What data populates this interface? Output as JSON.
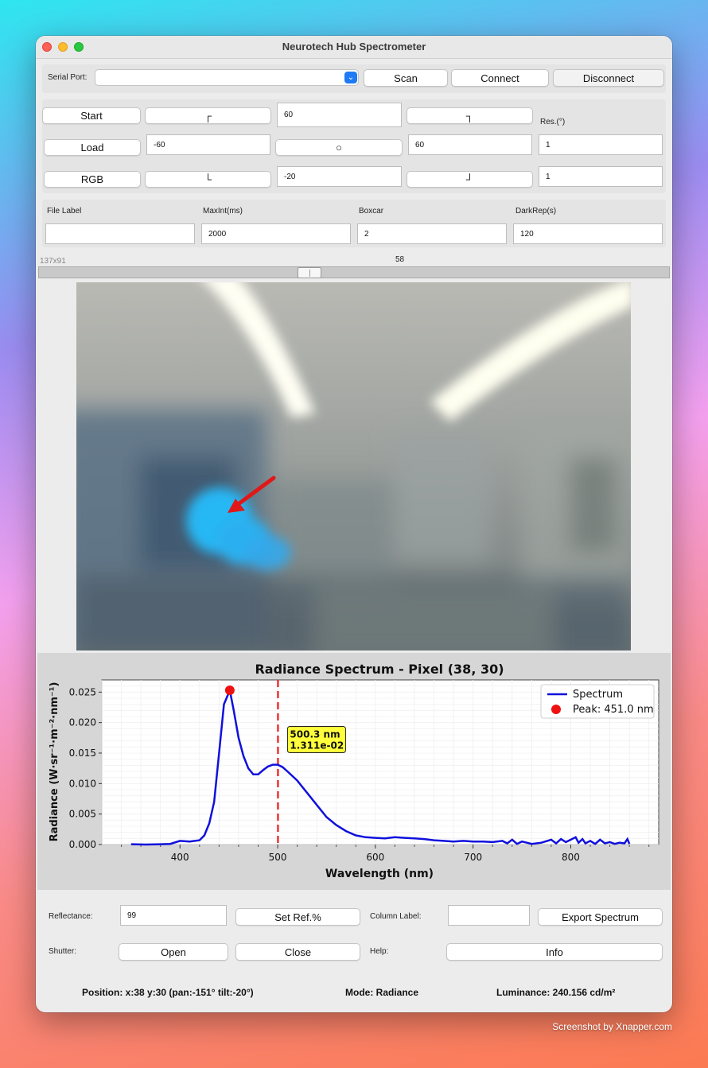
{
  "window": {
    "title": "Neurotech Hub Spectrometer"
  },
  "serial": {
    "label": "Serial Port:",
    "selected": "",
    "scan": "Scan",
    "connect": "Connect",
    "disconnect": "Disconnect"
  },
  "grid": {
    "start": "Start",
    "load": "Load",
    "rgb": "RGB",
    "tl_glyph": "┌",
    "tr_glyph": "┐",
    "bl_glyph": "└",
    "br_glyph": "┘",
    "center_glyph": "○",
    "top_value": "60",
    "left_value": "-60",
    "right_value": "60",
    "bottom_value": "-20",
    "res_label": "Res.(°)",
    "res_value_1": "1",
    "res_value_2": "1"
  },
  "params": {
    "file_label": "File Label",
    "file_value": "",
    "maxint_label": "MaxInt(ms)",
    "maxint_value": "2000",
    "boxcar_label": "Boxcar",
    "boxcar_value": "2",
    "darkrep_label": "DarkRep(s)",
    "darkrep_value": "120"
  },
  "slider": {
    "size_label": "137x91",
    "value_label": "58",
    "value": 58
  },
  "chart_data": {
    "type": "line",
    "title": "Radiance Spectrum - Pixel (38, 30)",
    "xlabel": "Wavelength (nm)",
    "ylabel": "Radiance (W·sr⁻¹·m⁻²·nm⁻¹)",
    "xlim": [
      320,
      890
    ],
    "ylim": [
      0,
      0.027
    ],
    "xticks": [
      400,
      500,
      600,
      700,
      800
    ],
    "yticks": [
      "0.000",
      "0.005",
      "0.010",
      "0.015",
      "0.020",
      "0.025"
    ],
    "ytick_values": [
      0,
      0.005,
      0.01,
      0.015,
      0.02,
      0.025
    ],
    "grid": true,
    "legend_position": "top-right",
    "series": [
      {
        "name": "Spectrum",
        "color": "#1010dd",
        "x": [
          350,
          365,
          380,
          390,
          400,
          410,
          420,
          425,
          430,
          435,
          440,
          445,
          451,
          455,
          460,
          465,
          470,
          475,
          480,
          485,
          490,
          495,
          500,
          505,
          510,
          520,
          530,
          540,
          550,
          560,
          570,
          580,
          590,
          600,
          610,
          620,
          630,
          640,
          650,
          660,
          670,
          680,
          690,
          700,
          710,
          720,
          730,
          735,
          740,
          745,
          750,
          760,
          770,
          780,
          785,
          790,
          795,
          800,
          805,
          808,
          812,
          815,
          820,
          825,
          830,
          835,
          840,
          845,
          850,
          855,
          858,
          860
        ],
        "y": [
          5e-05,
          0.0,
          5e-05,
          0.0001,
          0.0006,
          0.0005,
          0.0007,
          0.0015,
          0.0035,
          0.007,
          0.015,
          0.023,
          0.0253,
          0.022,
          0.0175,
          0.0145,
          0.0125,
          0.0115,
          0.0115,
          0.0122,
          0.0128,
          0.0131,
          0.0131,
          0.0127,
          0.012,
          0.0105,
          0.0085,
          0.0065,
          0.0045,
          0.0032,
          0.0022,
          0.0015,
          0.0012,
          0.0011,
          0.001,
          0.0012,
          0.0011,
          0.001,
          0.0009,
          0.0007,
          0.0006,
          0.0005,
          0.0006,
          0.0005,
          0.0005,
          0.0004,
          0.0006,
          0.0002,
          0.0008,
          0.0001,
          0.0005,
          0.0001,
          0.0003,
          0.0008,
          0.0002,
          0.0009,
          0.0004,
          0.0008,
          0.0012,
          0.0003,
          0.0009,
          0.0002,
          0.0006,
          0.0001,
          0.0008,
          0.0002,
          0.0004,
          0.0001,
          0.0003,
          0.0002,
          0.0009,
          0.0001
        ]
      }
    ],
    "peak": {
      "label": "Peak: 451.0 nm",
      "x": 451,
      "y": 0.0253,
      "color": "#ee1111"
    },
    "cursor": {
      "x": 500.3,
      "y": 0.01311,
      "label_nm": "500.3 nm",
      "label_val": "1.311e-02",
      "color": "#ee3333"
    }
  },
  "bottom": {
    "reflectance_label": "Reflectance:",
    "reflectance_value": "99",
    "set_ref": "Set Ref.%",
    "column_label": "Column Label:",
    "column_value": "",
    "export": "Export Spectrum",
    "shutter_label": "Shutter:",
    "open": "Open",
    "close": "Close",
    "help_label": "Help:",
    "info": "Info"
  },
  "status": {
    "position": "Position: x:38 y:30 (pan:-151° tilt:-20°)",
    "mode": "Mode: Radiance",
    "luminance": "Luminance: 240.156 cd/m²"
  },
  "watermark": "Screenshot by Xnapper.com"
}
